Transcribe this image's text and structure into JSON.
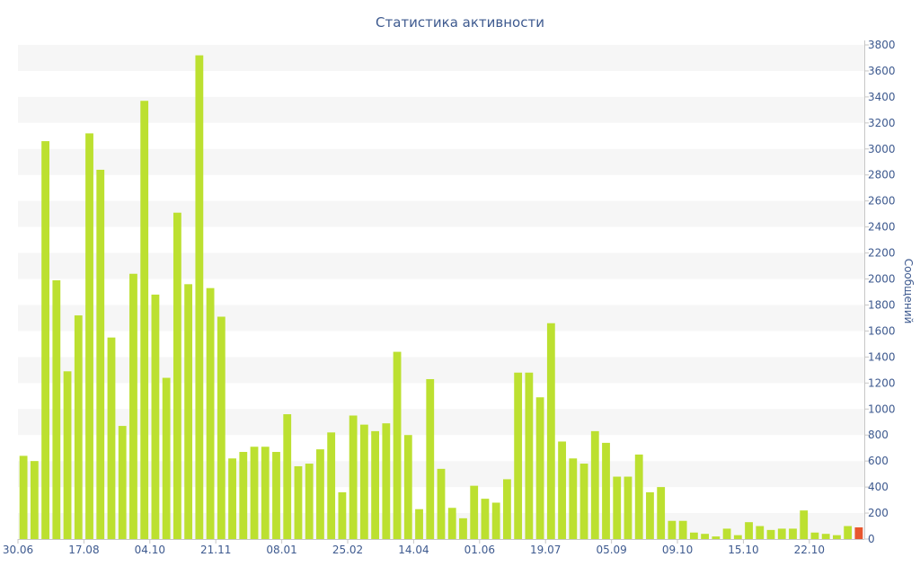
{
  "chart_data": {
    "type": "bar",
    "title": "Статистика активности",
    "xlabel": "",
    "ylabel": "Сообщений",
    "ylim": [
      0,
      3800
    ],
    "y_ticks": [
      0,
      200,
      400,
      600,
      800,
      1000,
      1200,
      1400,
      1600,
      1800,
      2000,
      2200,
      2400,
      2600,
      2800,
      3000,
      3200,
      3400,
      3600,
      3800
    ],
    "y_axis_side": "right",
    "grid": "alternating horizontal bands",
    "legend": "none",
    "x_tick_labels": [
      "30.06",
      "17.08",
      "04.10",
      "21.11",
      "08.01",
      "25.02",
      "14.04",
      "01.06",
      "19.07",
      "05.09",
      "09.10",
      "15.10",
      "22.10"
    ],
    "x_tick_label_bar_index": [
      0,
      6,
      12,
      18,
      24,
      30,
      36,
      42,
      48,
      54,
      60,
      66,
      72
    ],
    "values": [
      640,
      600,
      3060,
      1990,
      1290,
      1720,
      3120,
      2840,
      1550,
      870,
      2040,
      3370,
      1880,
      1240,
      2510,
      1960,
      3720,
      1930,
      1710,
      620,
      670,
      710,
      710,
      670,
      960,
      560,
      580,
      690,
      820,
      360,
      950,
      880,
      830,
      890,
      1440,
      800,
      230,
      1230,
      540,
      240,
      160,
      410,
      310,
      280,
      460,
      1280,
      1280,
      1090,
      1660,
      750,
      620,
      580,
      830,
      740,
      480,
      480,
      650,
      360,
      400,
      140,
      140,
      50,
      40,
      20,
      80,
      30,
      130,
      100,
      70,
      80,
      80,
      220,
      50,
      40,
      30,
      100,
      90
    ],
    "highlight_index": 76,
    "colors": {
      "bar": "#bce030",
      "highlight": "#e8552d",
      "band": "#f6f6f6",
      "text": "#3e5a8f",
      "axis": "#c7c7c7"
    }
  }
}
